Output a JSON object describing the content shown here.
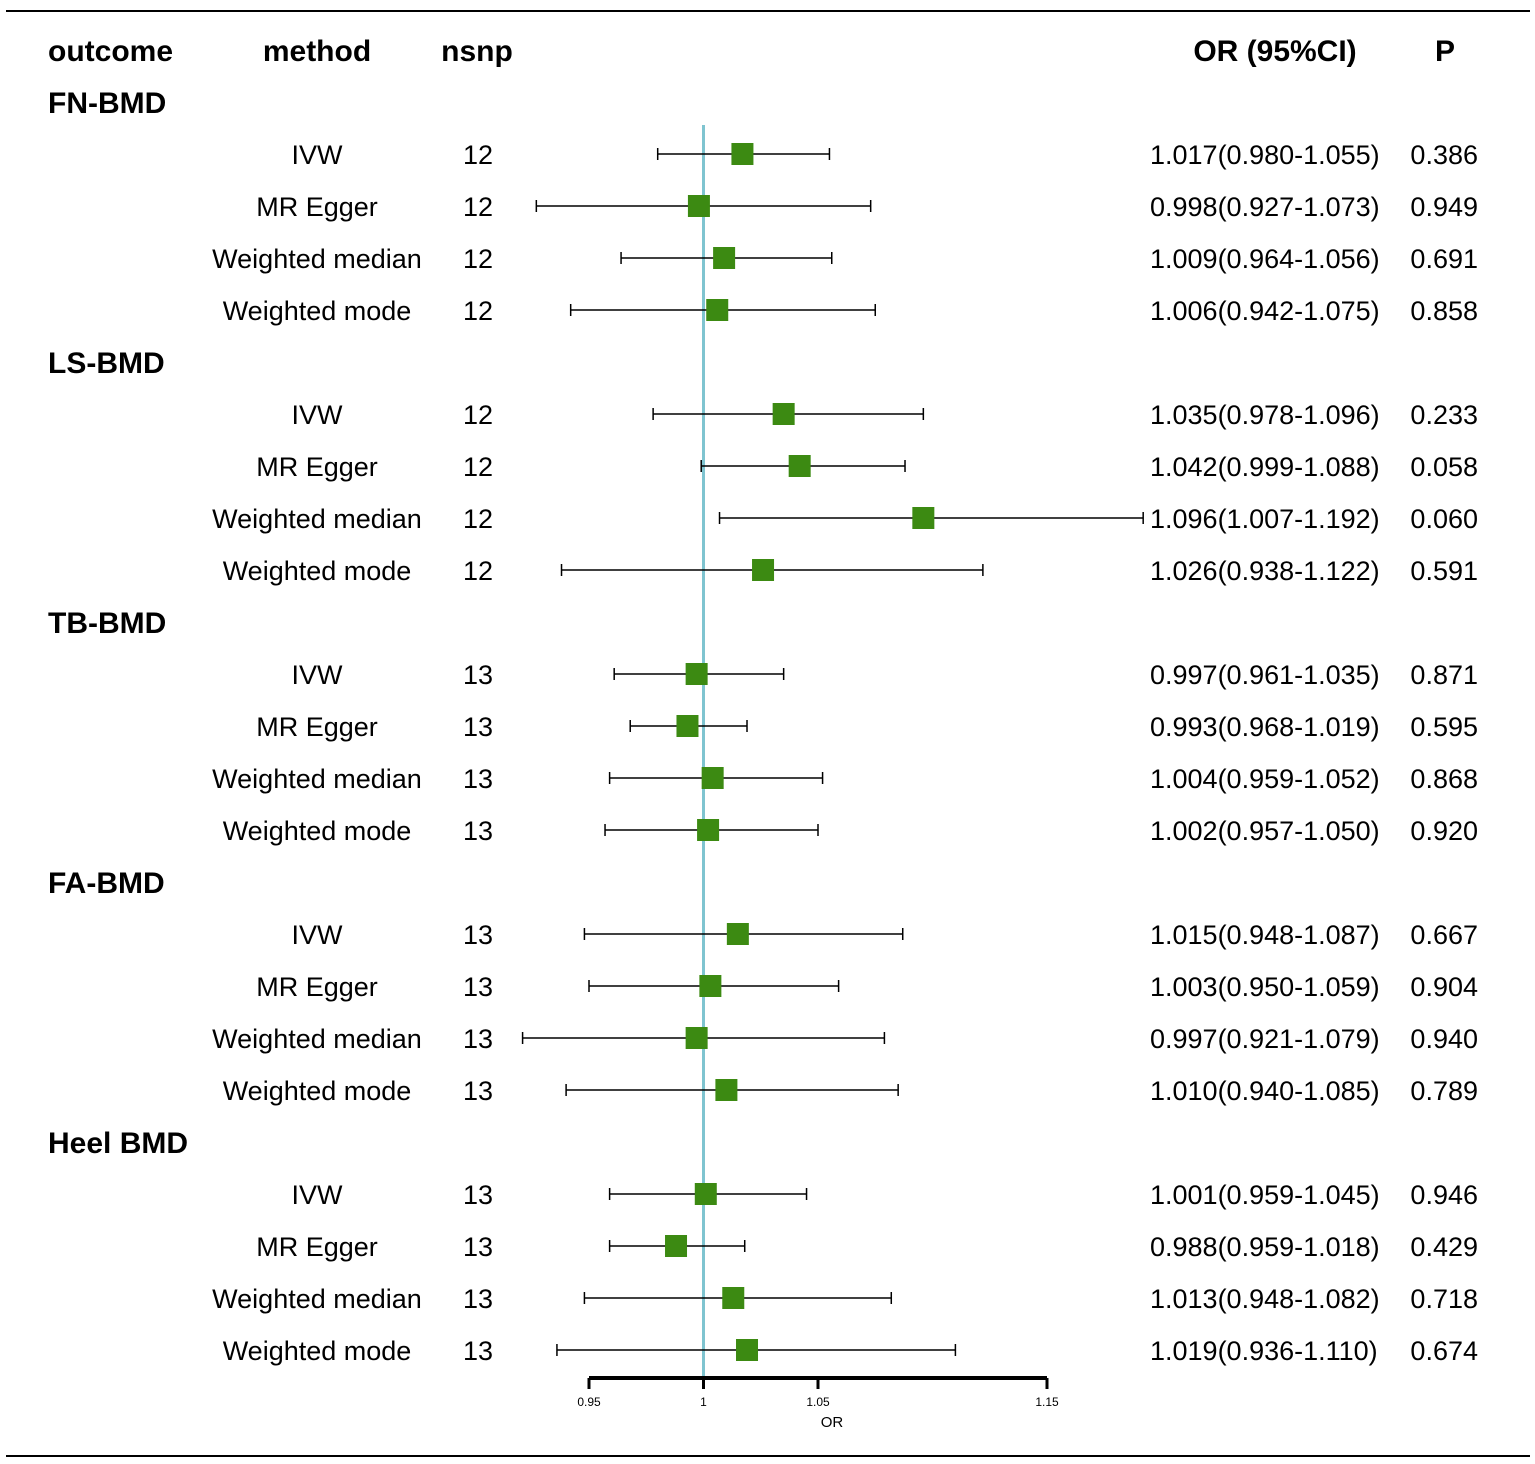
{
  "chart_data": {
    "type": "forest",
    "columns": {
      "outcome": "outcome",
      "method": "method",
      "nsnp": "nsnp",
      "or_ci": "OR (95%CI)",
      "p": "P"
    },
    "xlabel": "OR",
    "reference_line": 1,
    "xlim": [
      0.95,
      1.15
    ],
    "xticks": [
      {
        "value": 0.95,
        "label": "0.95"
      },
      {
        "value": 1,
        "label": "1"
      },
      {
        "value": 1.05,
        "label": "1.05"
      },
      {
        "value": 1.15,
        "label": "1.15"
      }
    ],
    "groups": [
      {
        "outcome": "FN-BMD",
        "rows": [
          {
            "method": "IVW",
            "nsnp": "12",
            "or": 1.017,
            "lo": 0.98,
            "hi": 1.055,
            "or_text": "1.017(0.980-1.055)",
            "p": "0.386"
          },
          {
            "method": "MR Egger",
            "nsnp": "12",
            "or": 0.998,
            "lo": 0.927,
            "hi": 1.073,
            "or_text": "0.998(0.927-1.073)",
            "p": "0.949"
          },
          {
            "method": "Weighted median",
            "nsnp": "12",
            "or": 1.009,
            "lo": 0.964,
            "hi": 1.056,
            "or_text": "1.009(0.964-1.056)",
            "p": "0.691"
          },
          {
            "method": "Weighted mode",
            "nsnp": "12",
            "or": 1.006,
            "lo": 0.942,
            "hi": 1.075,
            "or_text": "1.006(0.942-1.075)",
            "p": "0.858"
          }
        ]
      },
      {
        "outcome": "LS-BMD",
        "rows": [
          {
            "method": "IVW",
            "nsnp": "12",
            "or": 1.035,
            "lo": 0.978,
            "hi": 1.096,
            "or_text": "1.035(0.978-1.096)",
            "p": "0.233"
          },
          {
            "method": "MR Egger",
            "nsnp": "12",
            "or": 1.042,
            "lo": 0.999,
            "hi": 1.088,
            "or_text": "1.042(0.999-1.088)",
            "p": "0.058"
          },
          {
            "method": "Weighted median",
            "nsnp": "12",
            "or": 1.096,
            "lo": 1.007,
            "hi": 1.192,
            "or_text": "1.096(1.007-1.192)",
            "p": "0.060"
          },
          {
            "method": "Weighted mode",
            "nsnp": "12",
            "or": 1.026,
            "lo": 0.938,
            "hi": 1.122,
            "or_text": "1.026(0.938-1.122)",
            "p": "0.591"
          }
        ]
      },
      {
        "outcome": "TB-BMD",
        "rows": [
          {
            "method": "IVW",
            "nsnp": "13",
            "or": 0.997,
            "lo": 0.961,
            "hi": 1.035,
            "or_text": "0.997(0.961-1.035)",
            "p": "0.871"
          },
          {
            "method": "MR Egger",
            "nsnp": "13",
            "or": 0.993,
            "lo": 0.968,
            "hi": 1.019,
            "or_text": "0.993(0.968-1.019)",
            "p": "0.595"
          },
          {
            "method": "Weighted median",
            "nsnp": "13",
            "or": 1.004,
            "lo": 0.959,
            "hi": 1.052,
            "or_text": "1.004(0.959-1.052)",
            "p": "0.868"
          },
          {
            "method": "Weighted mode",
            "nsnp": "13",
            "or": 1.002,
            "lo": 0.957,
            "hi": 1.05,
            "or_text": "1.002(0.957-1.050)",
            "p": "0.920"
          }
        ]
      },
      {
        "outcome": "FA-BMD",
        "rows": [
          {
            "method": "IVW",
            "nsnp": "13",
            "or": 1.015,
            "lo": 0.948,
            "hi": 1.087,
            "or_text": "1.015(0.948-1.087)",
            "p": "0.667"
          },
          {
            "method": "MR Egger",
            "nsnp": "13",
            "or": 1.003,
            "lo": 0.95,
            "hi": 1.059,
            "or_text": "1.003(0.950-1.059)",
            "p": "0.904"
          },
          {
            "method": "Weighted median",
            "nsnp": "13",
            "or": 0.997,
            "lo": 0.921,
            "hi": 1.079,
            "or_text": "0.997(0.921-1.079)",
            "p": "0.940"
          },
          {
            "method": "Weighted mode",
            "nsnp": "13",
            "or": 1.01,
            "lo": 0.94,
            "hi": 1.085,
            "or_text": "1.010(0.940-1.085)",
            "p": "0.789"
          }
        ]
      },
      {
        "outcome": "Heel BMD",
        "rows": [
          {
            "method": "IVW",
            "nsnp": "13",
            "or": 1.001,
            "lo": 0.959,
            "hi": 1.045,
            "or_text": "1.001(0.959-1.045)",
            "p": "0.946"
          },
          {
            "method": "MR Egger",
            "nsnp": "13",
            "or": 0.988,
            "lo": 0.959,
            "hi": 1.018,
            "or_text": "0.988(0.959-1.018)",
            "p": "0.429"
          },
          {
            "method": "Weighted median",
            "nsnp": "13",
            "or": 1.013,
            "lo": 0.948,
            "hi": 1.082,
            "or_text": "1.013(0.948-1.082)",
            "p": "0.718"
          },
          {
            "method": "Weighted mode",
            "nsnp": "13",
            "or": 1.019,
            "lo": 0.936,
            "hi": 1.11,
            "or_text": "1.019(0.936-1.110)",
            "p": "0.674"
          }
        ]
      }
    ],
    "colors": {
      "marker": "#3c8a12",
      "reference_line": "#7fc4d0",
      "ci_line": "#000000",
      "rule": "#000000"
    }
  }
}
